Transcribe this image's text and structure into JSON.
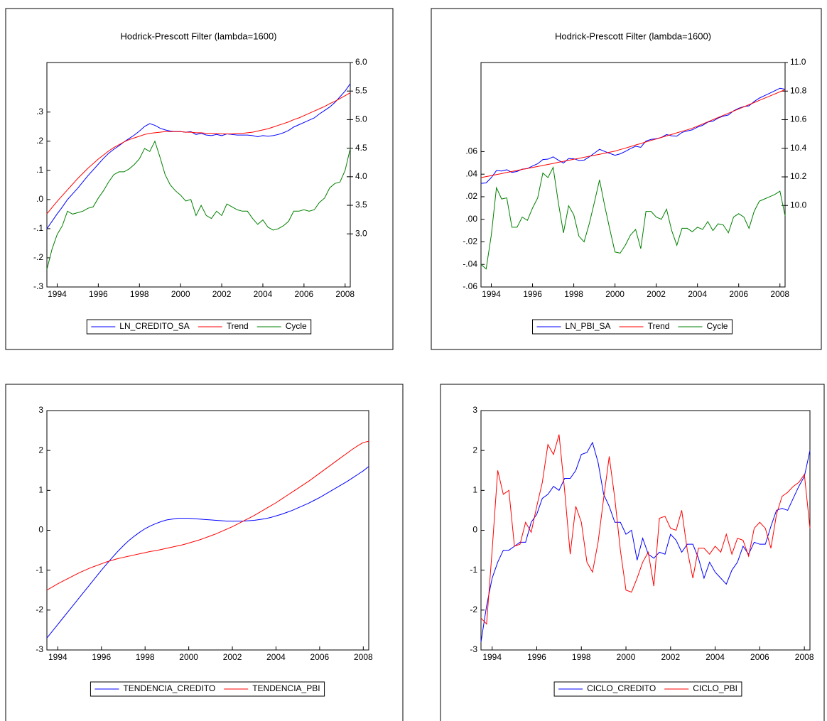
{
  "chart_data": [
    {
      "type": "line",
      "title": "Hodrick-Prescott Filter (lambda=1600)",
      "categories": [
        null,
        null,
        "1994",
        null,
        null,
        null,
        null,
        null,
        null,
        null,
        "1996",
        null,
        null,
        null,
        null,
        null,
        null,
        null,
        "1998",
        null,
        null,
        null,
        null,
        null,
        null,
        null,
        "2000",
        null,
        null,
        null,
        null,
        null,
        null,
        null,
        "2002",
        null,
        null,
        null,
        null,
        null,
        null,
        null,
        "2004",
        null,
        null,
        null,
        null,
        null,
        null,
        null,
        "2006",
        null,
        null,
        null,
        null,
        null,
        null,
        null,
        "2008",
        null
      ],
      "ylim": [
        -0.3,
        0.47
      ],
      "yticks": [
        {
          "value": 0.3,
          "label": ".3"
        },
        {
          "value": 0.2,
          "label": ".2"
        },
        {
          "value": 0.1,
          "label": ".1"
        },
        {
          "value": 0,
          "label": ".0"
        },
        {
          "value": -0.1,
          "label": "-.1"
        },
        {
          "value": -0.2,
          "label": "-.2"
        },
        {
          "value": -0.3,
          "label": "-.3"
        }
      ],
      "y2lim": [
        2.07,
        6.0
      ],
      "y2ticks": [
        {
          "value": 6,
          "label": "6.0"
        },
        5.5,
        {
          "value": 5,
          "label": "5.0"
        },
        4.5,
        {
          "value": 4,
          "label": "4.0"
        },
        3.5,
        {
          "value": 3,
          "label": "3.0"
        }
      ],
      "series": [
        {
          "name": "LN_CREDITO_SA",
          "color": "#0000ff",
          "axis": "y2",
          "values": [
            3.09,
            3.22,
            3.35,
            3.47,
            3.6,
            3.7,
            3.8,
            3.91,
            4.02,
            4.12,
            4.22,
            4.32,
            4.41,
            4.48,
            4.54,
            4.61,
            4.67,
            4.73,
            4.8,
            4.88,
            4.93,
            4.9,
            4.85,
            4.82,
            4.8,
            4.79,
            4.79,
            4.78,
            4.79,
            4.74,
            4.76,
            4.73,
            4.72,
            4.74,
            4.72,
            4.75,
            4.74,
            4.73,
            4.73,
            4.73,
            4.72,
            4.7,
            4.72,
            4.71,
            4.72,
            4.74,
            4.77,
            4.81,
            4.87,
            4.91,
            4.95,
            4.99,
            5.03,
            5.1,
            5.16,
            5.22,
            5.3,
            5.4,
            5.5,
            5.63
          ]
        },
        {
          "name": "Trend",
          "color": "#ff0000",
          "axis": "y2",
          "values": [
            3.35,
            3.46,
            3.57,
            3.67,
            3.77,
            3.87,
            3.97,
            4.06,
            4.15,
            4.23,
            4.31,
            4.38,
            4.45,
            4.51,
            4.56,
            4.61,
            4.65,
            4.68,
            4.71,
            4.74,
            4.76,
            4.77,
            4.78,
            4.79,
            4.79,
            4.79,
            4.79,
            4.78,
            4.78,
            4.77,
            4.77,
            4.76,
            4.76,
            4.76,
            4.75,
            4.75,
            4.75,
            4.76,
            4.76,
            4.77,
            4.78,
            4.8,
            4.82,
            4.84,
            4.87,
            4.9,
            4.93,
            4.96,
            5.0,
            5.03,
            5.07,
            5.11,
            5.15,
            5.19,
            5.23,
            5.28,
            5.32,
            5.37,
            5.42,
            5.47
          ]
        },
        {
          "name": "Cycle",
          "color": "#008000",
          "values": [
            -0.24,
            -0.17,
            -0.12,
            -0.09,
            -0.04,
            -0.05,
            -0.045,
            -0.04,
            -0.03,
            -0.025,
            0.005,
            0.03,
            0.06,
            0.085,
            0.095,
            0.095,
            0.105,
            0.12,
            0.14,
            0.175,
            0.165,
            0.2,
            0.145,
            0.085,
            0.05,
            0.03,
            0.015,
            -0.005,
            0,
            -0.055,
            -0.02,
            -0.055,
            -0.065,
            -0.04,
            -0.055,
            -0.015,
            -0.025,
            -0.035,
            -0.04,
            -0.04,
            -0.065,
            -0.085,
            -0.07,
            -0.095,
            -0.105,
            -0.1,
            -0.09,
            -0.075,
            -0.04,
            -0.04,
            -0.035,
            -0.04,
            -0.035,
            -0.01,
            0.005,
            0.04,
            0.055,
            0.06,
            0.1,
            0.175
          ]
        }
      ]
    },
    {
      "type": "line",
      "title": "Hodrick-Prescott Filter (lambda=1600)",
      "categories": [
        null,
        null,
        "1994",
        null,
        null,
        null,
        null,
        null,
        null,
        null,
        "1996",
        null,
        null,
        null,
        null,
        null,
        null,
        null,
        "1998",
        null,
        null,
        null,
        null,
        null,
        null,
        null,
        "2000",
        null,
        null,
        null,
        null,
        null,
        null,
        null,
        "2002",
        null,
        null,
        null,
        null,
        null,
        null,
        null,
        "2004",
        null,
        null,
        null,
        null,
        null,
        null,
        null,
        "2006",
        null,
        null,
        null,
        null,
        null,
        null,
        null,
        "2008",
        null
      ],
      "ylim": [
        -0.06,
        0.139
      ],
      "yticks": [
        {
          "value": 0.06,
          "label": ".06"
        },
        {
          "value": 0.04,
          "label": ".04"
        },
        {
          "value": 0.02,
          "label": ".02"
        },
        {
          "value": 0,
          "label": ".00"
        },
        {
          "value": -0.02,
          "label": "-.02"
        },
        {
          "value": -0.04,
          "label": "-.04"
        },
        {
          "value": -0.06,
          "label": "-.06"
        }
      ],
      "y2lim": [
        9.43,
        11.0
      ],
      "y2ticks": [
        {
          "value": 11,
          "label": "11.0"
        },
        10.8,
        10.6,
        10.4,
        10.2,
        {
          "value": 10,
          "label": "10.0"
        }
      ],
      "series": [
        {
          "name": "LN_PBI_SA",
          "color": "#0000ff",
          "axis": "y2",
          "values": [
            10.155,
            10.158,
            10.195,
            10.244,
            10.241,
            10.25,
            10.231,
            10.238,
            10.254,
            10.258,
            10.276,
            10.292,
            10.321,
            10.324,
            10.34,
            10.317,
            10.297,
            10.328,
            10.327,
            10.315,
            10.317,
            10.34,
            10.366,
            10.393,
            10.378,
            10.364,
            10.351,
            10.361,
            10.378,
            10.398,
            10.414,
            10.407,
            10.451,
            10.462,
            10.467,
            10.476,
            10.496,
            10.487,
            10.485,
            10.511,
            10.521,
            10.529,
            10.548,
            10.561,
            10.583,
            10.59,
            10.611,
            10.625,
            10.633,
            10.662,
            10.68,
            10.692,
            10.697,
            10.727,
            10.751,
            10.768,
            10.785,
            10.802,
            10.82,
            10.813
          ]
        },
        {
          "name": "Trend",
          "color": "#ff0000",
          "axis": "y2",
          "values": [
            10.195,
            10.202,
            10.209,
            10.216,
            10.223,
            10.231,
            10.238,
            10.245,
            10.252,
            10.259,
            10.266,
            10.273,
            10.28,
            10.287,
            10.294,
            10.302,
            10.309,
            10.316,
            10.323,
            10.33,
            10.337,
            10.344,
            10.351,
            10.358,
            10.366,
            10.373,
            10.38,
            10.391,
            10.401,
            10.412,
            10.423,
            10.433,
            10.444,
            10.455,
            10.465,
            10.476,
            10.487,
            10.497,
            10.508,
            10.519,
            10.529,
            10.54,
            10.555,
            10.57,
            10.585,
            10.6,
            10.615,
            10.63,
            10.645,
            10.66,
            10.675,
            10.69,
            10.705,
            10.72,
            10.735,
            10.75,
            10.765,
            10.78,
            10.795,
            10.81
          ]
        },
        {
          "name": "Cycle",
          "color": "#008000",
          "values": [
            -0.04,
            -0.044,
            -0.014,
            0.028,
            0.018,
            0.019,
            -0.007,
            -0.007,
            0.002,
            -0.001,
            0.01,
            0.019,
            0.041,
            0.037,
            0.046,
            0.015,
            -0.012,
            0.012,
            0.004,
            -0.015,
            -0.02,
            -0.004,
            0.015,
            0.035,
            0.012,
            -0.009,
            -0.029,
            -0.03,
            -0.023,
            -0.014,
            -0.009,
            -0.026,
            0.007,
            0.007,
            0.002,
            0,
            0.009,
            -0.01,
            -0.023,
            -0.008,
            -0.008,
            -0.011,
            -0.007,
            -0.009,
            -0.002,
            -0.01,
            -0.004,
            -0.005,
            -0.012,
            0.002,
            0.005,
            0.002,
            -0.008,
            0.007,
            0.016,
            0.018,
            0.02,
            0.022,
            0.025,
            0.003
          ]
        }
      ]
    },
    {
      "type": "line",
      "categories": [
        null,
        null,
        "1994",
        null,
        null,
        null,
        null,
        null,
        null,
        null,
        "1996",
        null,
        null,
        null,
        null,
        null,
        null,
        null,
        "1998",
        null,
        null,
        null,
        null,
        null,
        null,
        null,
        "2000",
        null,
        null,
        null,
        null,
        null,
        null,
        null,
        "2002",
        null,
        null,
        null,
        null,
        null,
        null,
        null,
        "2004",
        null,
        null,
        null,
        null,
        null,
        null,
        null,
        "2006",
        null,
        null,
        null,
        null,
        null,
        null,
        null,
        "2008",
        null
      ],
      "ylim": [
        -3,
        3
      ],
      "yticks": [
        3,
        2,
        1,
        0,
        -1,
        -2,
        -3
      ],
      "series": [
        {
          "name": "TENDENCIA_CREDITO",
          "color": "#0000ff",
          "values": [
            -2.7,
            -2.53,
            -2.36,
            -2.19,
            -2.02,
            -1.85,
            -1.68,
            -1.51,
            -1.34,
            -1.17,
            -1.0,
            -0.84,
            -0.68,
            -0.53,
            -0.39,
            -0.26,
            -0.15,
            -0.05,
            0.04,
            0.11,
            0.17,
            0.22,
            0.26,
            0.28,
            0.3,
            0.3,
            0.3,
            0.29,
            0.28,
            0.27,
            0.26,
            0.25,
            0.24,
            0.23,
            0.23,
            0.23,
            0.23,
            0.24,
            0.25,
            0.27,
            0.29,
            0.32,
            0.36,
            0.4,
            0.45,
            0.5,
            0.56,
            0.62,
            0.68,
            0.75,
            0.82,
            0.9,
            0.98,
            1.06,
            1.14,
            1.22,
            1.31,
            1.4,
            1.49,
            1.6
          ]
        },
        {
          "name": "TENDENCIA_PBI",
          "color": "#ff0000",
          "values": [
            -1.5,
            -1.42,
            -1.34,
            -1.27,
            -1.2,
            -1.13,
            -1.06,
            -1.0,
            -0.94,
            -0.89,
            -0.84,
            -0.79,
            -0.75,
            -0.71,
            -0.68,
            -0.65,
            -0.62,
            -0.59,
            -0.56,
            -0.53,
            -0.51,
            -0.48,
            -0.45,
            -0.42,
            -0.39,
            -0.36,
            -0.32,
            -0.28,
            -0.24,
            -0.19,
            -0.14,
            -0.09,
            -0.03,
            0.03,
            0.09,
            0.16,
            0.23,
            0.3,
            0.37,
            0.45,
            0.53,
            0.61,
            0.69,
            0.78,
            0.87,
            0.96,
            1.05,
            1.14,
            1.23,
            1.33,
            1.43,
            1.53,
            1.63,
            1.73,
            1.83,
            1.93,
            2.03,
            2.12,
            2.2,
            2.23
          ]
        }
      ]
    },
    {
      "type": "line",
      "categories": [
        null,
        null,
        "1994",
        null,
        null,
        null,
        null,
        null,
        null,
        null,
        "1996",
        null,
        null,
        null,
        null,
        null,
        null,
        null,
        "1998",
        null,
        null,
        null,
        null,
        null,
        null,
        null,
        "2000",
        null,
        null,
        null,
        null,
        null,
        null,
        null,
        "2002",
        null,
        null,
        null,
        null,
        null,
        null,
        null,
        "2004",
        null,
        null,
        null,
        null,
        null,
        null,
        null,
        "2006",
        null,
        null,
        null,
        null,
        null,
        null,
        null,
        "2008",
        null
      ],
      "ylim": [
        -3,
        3
      ],
      "yticks": [
        3,
        2,
        1,
        0,
        -1,
        -2,
        -3
      ],
      "series": [
        {
          "name": "CICLO_CREDITO",
          "color": "#0000ff",
          "values": [
            -2.8,
            -1.9,
            -1.2,
            -0.8,
            -0.5,
            -0.5,
            -0.4,
            -0.3,
            -0.3,
            0.2,
            0.4,
            0.8,
            0.9,
            1.1,
            1.0,
            1.3,
            1.3,
            1.5,
            1.9,
            1.95,
            2.2,
            1.7,
            0.9,
            0.6,
            0.2,
            0.2,
            -0.1,
            0,
            -0.75,
            -0.2,
            -0.6,
            -0.7,
            -0.55,
            -0.6,
            -0.1,
            -0.25,
            -0.55,
            -0.35,
            -0.35,
            -0.7,
            -1.2,
            -0.8,
            -1.05,
            -1.2,
            -1.35,
            -1.0,
            -0.8,
            -0.4,
            -0.6,
            -0.3,
            -0.35,
            -0.35,
            0.1,
            0.5,
            0.55,
            0.5,
            0.8,
            1.1,
            1.35,
            2.0
          ]
        },
        {
          "name": "CICLO_PBI",
          "color": "#ff0000",
          "values": [
            -2.2,
            -2.35,
            -0.5,
            1.5,
            0.9,
            1.0,
            -0.4,
            -0.35,
            0.2,
            -0.05,
            0.6,
            1.2,
            2.15,
            1.9,
            2.4,
            1.0,
            -0.6,
            0.6,
            0.2,
            -0.8,
            -1.05,
            -0.3,
            0.8,
            1.85,
            0.8,
            -0.5,
            -1.5,
            -1.55,
            -1.2,
            -0.8,
            -0.55,
            -1.4,
            0.3,
            0.35,
            0.05,
            0.0,
            0.5,
            -0.5,
            -1.2,
            -0.45,
            -0.45,
            -0.6,
            -0.4,
            -0.55,
            -0.1,
            -0.6,
            -0.2,
            -0.25,
            -0.65,
            0.05,
            0.2,
            0.05,
            -0.45,
            0.4,
            0.85,
            0.95,
            1.1,
            1.2,
            1.4,
            0.05
          ]
        }
      ]
    }
  ]
}
